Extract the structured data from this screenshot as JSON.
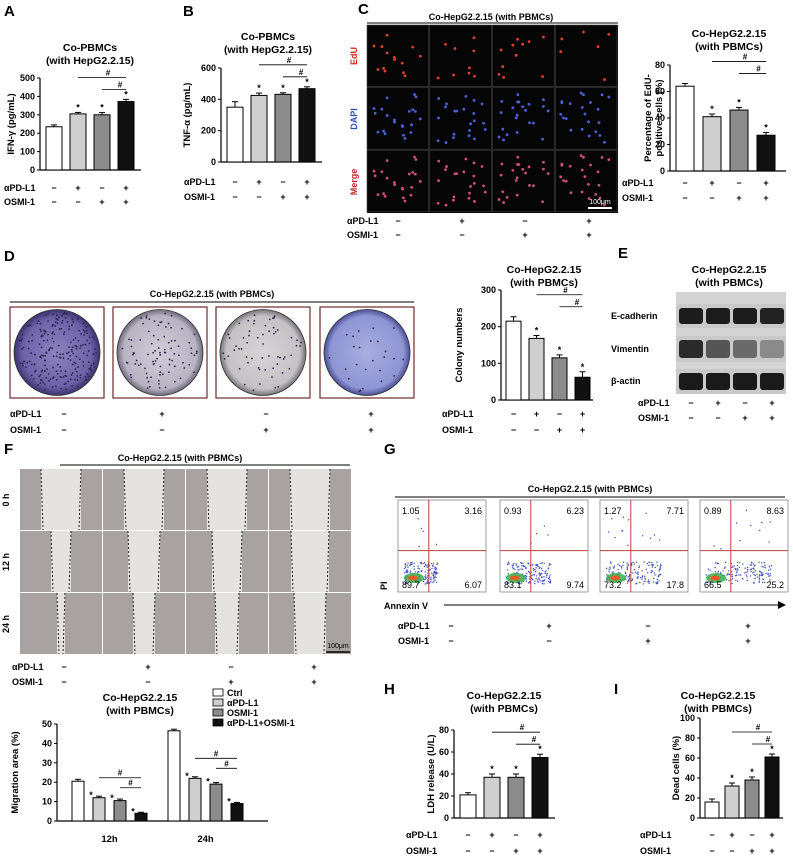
{
  "panels": {
    "A": "A",
    "B": "B",
    "C": "C",
    "D": "D",
    "E": "E",
    "F": "F",
    "G": "G",
    "H": "H",
    "I": "I"
  },
  "groups": [
    "Ctrl",
    "αPD-L1",
    "OSMI-1",
    "αPD-L1+OSMI-1"
  ],
  "row_labels": {
    "pdl1": "αPD-L1",
    "osmi": "OSMI-1"
  },
  "signs": {
    "pdl1": [
      "−",
      "+",
      "−",
      "+"
    ],
    "osmi": [
      "−",
      "−",
      "+",
      "+"
    ]
  },
  "marks": {
    "star": "*",
    "hash": "#"
  },
  "colors": {
    "ctrl": "#ffffff",
    "pdl1": "#cfcfcf",
    "osmi": "#8c8c8c",
    "combo": "#111111"
  },
  "headers": {
    "coHep": "Co-HepG2.2.15 (with PBMCs)",
    "coHepTitle": [
      "Co-HepG2.2.15",
      "(with PBMCs)"
    ]
  },
  "A": {
    "title": [
      "Co-PBMCs",
      "(with HepG2.2.15)"
    ]
  },
  "B": {
    "title": [
      "Co-PBMCs",
      "(with HepG2.2.15)"
    ]
  },
  "C": {
    "rows": [
      "EdU",
      "DAPI",
      "Merge"
    ],
    "scale": "100μm"
  },
  "E": {
    "bands": [
      "E-cadherin",
      "Vimentin",
      "β-actin"
    ]
  },
  "F": {
    "rows": [
      "0 h",
      "12 h",
      "24 h"
    ],
    "scale": "100μm"
  },
  "G": {
    "quadrants": [
      {
        "ul": "1.05",
        "ur": "3.16",
        "ll": "89.7",
        "lr": "6.07"
      },
      {
        "ul": "0.93",
        "ur": "6.23",
        "ll": "83.1",
        "lr": "9.74"
      },
      {
        "ul": "1.27",
        "ur": "7.71",
        "ll": "73.2",
        "lr": "17.8"
      },
      {
        "ul": "0.89",
        "ur": "8.63",
        "ll": "66.5",
        "lr": "25.2"
      }
    ],
    "xlabel": "Annexin V",
    "ylabel": "PI"
  },
  "chart_data": [
    {
      "id": "A",
      "type": "bar",
      "title": "Co-PBMCs (with HepG2.2.15)",
      "ylabel": "IFN-γ (pg/mL)",
      "categories": [
        "Ctrl",
        "αPD-L1",
        "OSMI-1",
        "αPD-L1+OSMI-1"
      ],
      "values": [
        235,
        305,
        300,
        372
      ],
      "errors": [
        10,
        8,
        12,
        12
      ],
      "ylim": [
        0,
        500
      ],
      "yticks": [
        "0",
        "100",
        "200",
        "300",
        "400",
        "500"
      ],
      "tickvals": [
        0,
        100,
        200,
        300,
        400,
        500
      ],
      "stars": [
        false,
        true,
        true,
        true
      ],
      "hash_pairs": [
        [
          1,
          3
        ],
        [
          2,
          3
        ]
      ]
    },
    {
      "id": "B",
      "type": "bar",
      "title": "Co-PBMCs (with HepG2.2.15)",
      "ylabel": "TNF-α (pg/mL)",
      "categories": [
        "Ctrl",
        "αPD-L1",
        "OSMI-1",
        "αPD-L1+OSMI-1"
      ],
      "values": [
        350,
        425,
        432,
        468
      ],
      "errors": [
        35,
        15,
        10,
        12
      ],
      "ylim": [
        0,
        600
      ],
      "yticks": [
        "0",
        "200",
        "400",
        "600"
      ],
      "tickvals": [
        0,
        200,
        400,
        600
      ],
      "stars": [
        false,
        true,
        true,
        true
      ],
      "hash_pairs": [
        [
          1,
          3
        ],
        [
          2,
          3
        ]
      ]
    },
    {
      "id": "C",
      "type": "bar",
      "title": "Co-HepG2.2.15 (with PBMCs)",
      "ylabel": "Percentage of EdU-positive cells (%)",
      "categories": [
        "Ctrl",
        "αPD-L1",
        "OSMI-1",
        "αPD-L1+OSMI-1"
      ],
      "values": [
        64,
        41,
        46,
        27
      ],
      "errors": [
        2,
        2,
        2,
        2
      ],
      "ylim": [
        0,
        80
      ],
      "yticks": [
        "0",
        "20",
        "40",
        "60",
        "80"
      ],
      "tickvals": [
        0,
        20,
        40,
        60,
        80
      ],
      "stars": [
        false,
        true,
        true,
        true
      ],
      "hash_pairs": [
        [
          1,
          3
        ],
        [
          2,
          3
        ]
      ]
    },
    {
      "id": "D",
      "type": "bar",
      "title": "Co-HepG2.2.15 (with PBMCs)",
      "ylabel": "Colony numbers",
      "categories": [
        "Ctrl",
        "αPD-L1",
        "OSMI-1",
        "αPD-L1+OSMI-1"
      ],
      "values": [
        215,
        168,
        115,
        62
      ],
      "errors": [
        12,
        8,
        8,
        15
      ],
      "ylim": [
        0,
        300
      ],
      "yticks": [
        "0",
        "100",
        "200",
        "300"
      ],
      "tickvals": [
        0,
        100,
        200,
        300
      ],
      "stars": [
        false,
        true,
        true,
        true
      ],
      "hash_pairs": [
        [
          1,
          3
        ],
        [
          2,
          3
        ]
      ]
    },
    {
      "id": "F",
      "type": "bar",
      "title": "Co-HepG2.2.15 (with PBMCs)",
      "ylabel": "Migration area (%)",
      "categories": [
        "12h",
        "24h"
      ],
      "series": [
        {
          "name": "Ctrl",
          "values": [
            20.5,
            46.5
          ]
        },
        {
          "name": "αPD-L1",
          "values": [
            12,
            22
          ]
        },
        {
          "name": "OSMI-1",
          "values": [
            10.5,
            19
          ]
        },
        {
          "name": "αPD-L1+OSMI-1",
          "values": [
            4,
            9
          ]
        }
      ],
      "errors": [
        [
          1,
          0.8
        ],
        [
          0.8,
          0.8
        ],
        [
          0.8,
          0.8
        ],
        [
          0.5,
          0.6
        ]
      ],
      "ylim": [
        0,
        50
      ],
      "yticks": [
        "0",
        "10",
        "20",
        "30",
        "40",
        "50"
      ],
      "tickvals": [
        0,
        10,
        20,
        30,
        40,
        50
      ],
      "legend": "top-right"
    },
    {
      "id": "H",
      "type": "bar",
      "title": "Co-HepG2.2.15 (with PBMCs)",
      "ylabel": "LDH release (U/L)",
      "categories": [
        "Ctrl",
        "αPD-L1",
        "OSMI-1",
        "αPD-L1+OSMI-1"
      ],
      "values": [
        21,
        37,
        37,
        55
      ],
      "errors": [
        2,
        3,
        3,
        3
      ],
      "ylim": [
        0,
        80
      ],
      "yticks": [
        "0",
        "20",
        "40",
        "60",
        "80"
      ],
      "tickvals": [
        0,
        20,
        40,
        60,
        80
      ],
      "stars": [
        false,
        true,
        true,
        true
      ],
      "hash_pairs": [
        [
          1,
          3
        ],
        [
          2,
          3
        ]
      ]
    },
    {
      "id": "I",
      "type": "bar",
      "title": "Co-HepG2.2.15 (with PBMCs)",
      "ylabel": "Dead cells (%)",
      "categories": [
        "Ctrl",
        "αPD-L1",
        "OSMI-1",
        "αPD-L1+OSMI-1"
      ],
      "values": [
        16,
        32,
        38,
        61
      ],
      "errors": [
        3,
        3,
        3,
        3
      ],
      "ylim": [
        0,
        100
      ],
      "yticks": [
        "0",
        "20",
        "40",
        "60",
        "80",
        "100"
      ],
      "tickvals": [
        0,
        20,
        40,
        60,
        80,
        100
      ],
      "stars": [
        false,
        true,
        true,
        true
      ],
      "hash_pairs": [
        [
          1,
          3
        ],
        [
          2,
          3
        ]
      ]
    }
  ]
}
